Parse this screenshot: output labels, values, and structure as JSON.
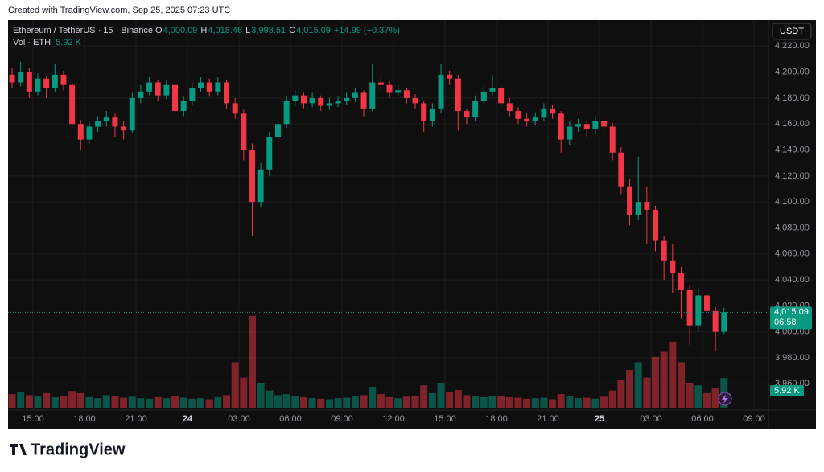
{
  "header": {
    "created": "Created with TradingView.com, Sep 25, 2025 07:23 UTC"
  },
  "brand": "TradingView",
  "chart_data": {
    "type": "candlestick",
    "symbol": "Ethereum / TetherUS · 15 · Binance",
    "legend": [
      {
        "key": "O",
        "text": "4,000.09"
      },
      {
        "key": "H",
        "text": "4,018.46"
      },
      {
        "key": "L",
        "text": "3,998.51"
      },
      {
        "key": "C",
        "text": "4,015.09"
      }
    ],
    "change": "+14.99 (+0.37%)",
    "volume_title": "Vol · ETH",
    "volume_last": "5.92 K",
    "currency": "USDT",
    "countdown": "06:58",
    "last_price": {
      "value": 4015.09,
      "label": "4,015.09"
    },
    "up_color": "#089981",
    "down_color": "#f23645",
    "time_labels": [
      "15:00",
      "18:00",
      "21:00",
      "24",
      "03:00",
      "06:00",
      "09:00",
      "12:00",
      "15:00",
      "18:00",
      "21:00",
      "25",
      "03:00",
      "06:00",
      "09:00"
    ],
    "ylim": [
      3941,
      4240
    ],
    "yticks": [
      {
        "value": 3960,
        "label": "3,960.00"
      },
      {
        "value": 3980,
        "label": "3,980.00"
      },
      {
        "value": 4000,
        "label": "4,000.00"
      },
      {
        "value": 4020,
        "label": "4,020.00"
      },
      {
        "value": 4040,
        "label": "4,040.00"
      },
      {
        "value": 4060,
        "label": "4,060.00"
      },
      {
        "value": 4080,
        "label": "4,080.00"
      },
      {
        "value": 4100,
        "label": "4,100.00"
      },
      {
        "value": 4120,
        "label": "4,120.00"
      },
      {
        "value": 4140,
        "label": "4,140.00"
      },
      {
        "value": 4160,
        "label": "4,160.00"
      },
      {
        "value": 4180,
        "label": "4,180.00"
      },
      {
        "value": 4200,
        "label": "4,200.00"
      },
      {
        "value": 4220,
        "label": "4,220.00"
      }
    ],
    "candles": [
      [
        4198,
        4203,
        4188,
        4192
      ],
      [
        4192,
        4208,
        4189,
        4200
      ],
      [
        4200,
        4203,
        4180,
        4185
      ],
      [
        4185,
        4199,
        4182,
        4195
      ],
      [
        4195,
        4197,
        4180,
        4188
      ],
      [
        4188,
        4206,
        4185,
        4198
      ],
      [
        4198,
        4201,
        4186,
        4190
      ],
      [
        4190,
        4192,
        4156,
        4160
      ],
      [
        4160,
        4163,
        4140,
        4148
      ],
      [
        4148,
        4162,
        4145,
        4158
      ],
      [
        4158,
        4166,
        4154,
        4162
      ],
      [
        4162,
        4170,
        4158,
        4165
      ],
      [
        4165,
        4168,
        4150,
        4158
      ],
      [
        4158,
        4162,
        4148,
        4155
      ],
      [
        4155,
        4184,
        4153,
        4180
      ],
      [
        4180,
        4190,
        4176,
        4185
      ],
      [
        4185,
        4196,
        4182,
        4192
      ],
      [
        4192,
        4194,
        4178,
        4182
      ],
      [
        4182,
        4194,
        4179,
        4190
      ],
      [
        4190,
        4192,
        4166,
        4170
      ],
      [
        4170,
        4181,
        4166,
        4178
      ],
      [
        4178,
        4192,
        4175,
        4188
      ],
      [
        4188,
        4196,
        4185,
        4192
      ],
      [
        4192,
        4195,
        4181,
        4185
      ],
      [
        4185,
        4196,
        4182,
        4192
      ],
      [
        4192,
        4194,
        4172,
        4176
      ],
      [
        4176,
        4180,
        4164,
        4168
      ],
      [
        4168,
        4171,
        4132,
        4140
      ],
      [
        4140,
        4145,
        4074,
        4100
      ],
      [
        4100,
        4130,
        4096,
        4125
      ],
      [
        4125,
        4154,
        4120,
        4150
      ],
      [
        4150,
        4164,
        4146,
        4160
      ],
      [
        4160,
        4182,
        4157,
        4178
      ],
      [
        4178,
        4186,
        4174,
        4182
      ],
      [
        4182,
        4184,
        4172,
        4176
      ],
      [
        4176,
        4184,
        4173,
        4180
      ],
      [
        4180,
        4182,
        4170,
        4174
      ],
      [
        4174,
        4180,
        4171,
        4176
      ],
      [
        4176,
        4181,
        4173,
        4178
      ],
      [
        4178,
        4184,
        4175,
        4180
      ],
      [
        4180,
        4188,
        4177,
        4184
      ],
      [
        4184,
        4186,
        4166,
        4172
      ],
      [
        4172,
        4206,
        4170,
        4192
      ],
      [
        4192,
        4198,
        4186,
        4190
      ],
      [
        4190,
        4193,
        4180,
        4184
      ],
      [
        4184,
        4190,
        4181,
        4186
      ],
      [
        4186,
        4188,
        4176,
        4180
      ],
      [
        4180,
        4183,
        4172,
        4176
      ],
      [
        4176,
        4178,
        4154,
        4162
      ],
      [
        4162,
        4176,
        4158,
        4172
      ],
      [
        4172,
        4206,
        4168,
        4198
      ],
      [
        4198,
        4201,
        4190,
        4195
      ],
      [
        4195,
        4198,
        4155,
        4170
      ],
      [
        4170,
        4172,
        4160,
        4165
      ],
      [
        4165,
        4182,
        4162,
        4178
      ],
      [
        4178,
        4189,
        4175,
        4185
      ],
      [
        4185,
        4198,
        4182,
        4188
      ],
      [
        4188,
        4191,
        4172,
        4176
      ],
      [
        4176,
        4180,
        4166,
        4170
      ],
      [
        4170,
        4173,
        4160,
        4164
      ],
      [
        4164,
        4168,
        4158,
        4162
      ],
      [
        4162,
        4169,
        4159,
        4165
      ],
      [
        4165,
        4176,
        4162,
        4172
      ],
      [
        4172,
        4175,
        4164,
        4168
      ],
      [
        4168,
        4170,
        4138,
        4148
      ],
      [
        4148,
        4162,
        4144,
        4158
      ],
      [
        4158,
        4164,
        4154,
        4160
      ],
      [
        4160,
        4163,
        4150,
        4156
      ],
      [
        4156,
        4166,
        4152,
        4162
      ],
      [
        4162,
        4164,
        4150,
        4158
      ],
      [
        4158,
        4161,
        4132,
        4138
      ],
      [
        4138,
        4142,
        4106,
        4112
      ],
      [
        4112,
        4118,
        4082,
        4090
      ],
      [
        4090,
        4135,
        4086,
        4100
      ],
      [
        4100,
        4112,
        4068,
        4094
      ],
      [
        4094,
        4097,
        4062,
        4070
      ],
      [
        4070,
        4074,
        4040,
        4055
      ],
      [
        4055,
        4068,
        4030,
        4045
      ],
      [
        4045,
        4050,
        4010,
        4032
      ],
      [
        4032,
        4036,
        3990,
        4005
      ],
      [
        4005,
        4034,
        4000,
        4028
      ],
      [
        4028,
        4031,
        4010,
        4016
      ],
      [
        4016,
        4019,
        3985,
        4000
      ],
      [
        4000.09,
        4018.46,
        3998.51,
        4015.09
      ]
    ],
    "volumes": [
      2800,
      3200,
      2600,
      2400,
      3000,
      2200,
      2500,
      3400,
      3000,
      2200,
      2000,
      2600,
      2400,
      2100,
      2300,
      2000,
      1900,
      2200,
      2000,
      2500,
      2100,
      1900,
      2000,
      1800,
      2200,
      2600,
      9000,
      6000,
      18000,
      5000,
      3500,
      2600,
      2800,
      2400,
      2200,
      2000,
      1900,
      1800,
      2000,
      2100,
      2400,
      2600,
      4200,
      2800,
      2200,
      2000,
      2300,
      2400,
      4500,
      3000,
      5000,
      3200,
      3600,
      2600,
      2400,
      2200,
      2500,
      2400,
      2200,
      2100,
      1900,
      2000,
      2100,
      1800,
      2800,
      2400,
      2000,
      2100,
      1900,
      2300,
      3500,
      5500,
      7500,
      9000,
      6000,
      10000,
      11000,
      13000,
      9000,
      5000,
      4500,
      3000,
      4000,
      5920
    ]
  }
}
